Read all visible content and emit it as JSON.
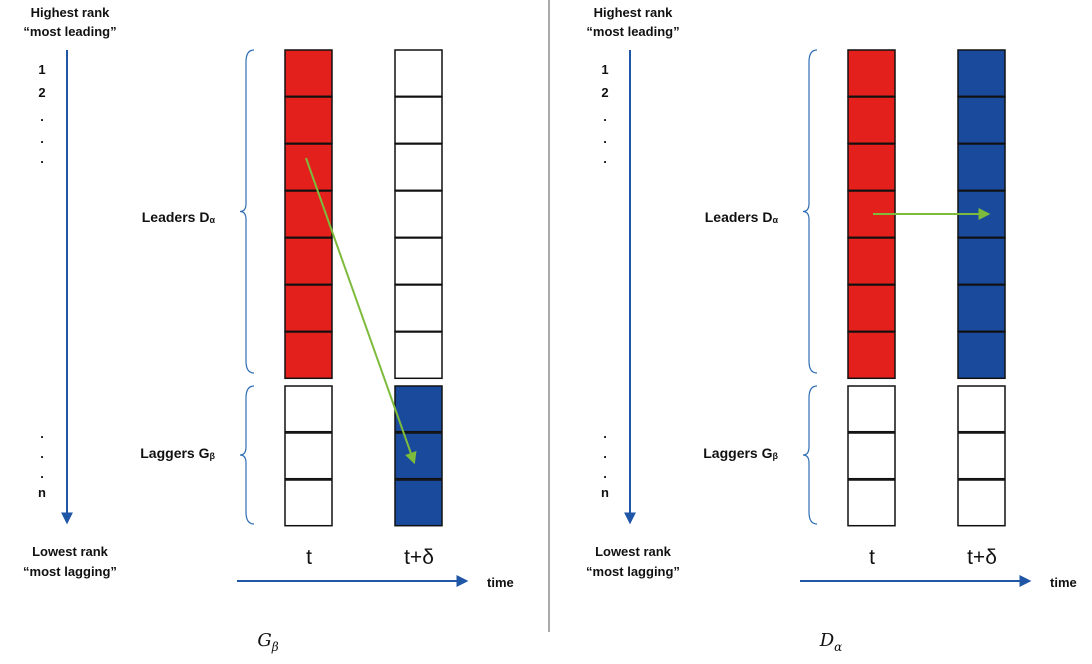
{
  "colors": {
    "red": "#e3201b",
    "blue": "#1a4a9c",
    "white": "#ffffff",
    "green": "#7dbb3c",
    "axis": "#1f56a6",
    "brace": "#2e6db4"
  },
  "panels": [
    {
      "rank_top": {
        "line1": "Highest rank",
        "line2": "“most leading”"
      },
      "rank_bottom": {
        "line1": "Lowest rank",
        "line2": "“most lagging”"
      },
      "ranks_top": [
        "1",
        "2",
        ".",
        ".",
        "."
      ],
      "ranks_bottom": [
        ".",
        ".",
        ".",
        "n"
      ],
      "leaders": {
        "label": "Leaders D",
        "sub": "α"
      },
      "laggers": {
        "label": "Laggers G",
        "sub": "β"
      },
      "col_t": "t",
      "col_td": "t+δ",
      "time_label": "time",
      "caption": {
        "main": "G",
        "sub": "β"
      },
      "t_column": [
        "red",
        "red",
        "red",
        "red",
        "red",
        "red",
        "red",
        "white",
        "white",
        "white"
      ],
      "td_column": [
        "white",
        "white",
        "white",
        "white",
        "white",
        "white",
        "white",
        "blue",
        "blue",
        "blue"
      ],
      "arrow": {
        "from_cell": 2,
        "to_cell": 8
      }
    },
    {
      "rank_top": {
        "line1": "Highest rank",
        "line2": "“most leading”"
      },
      "rank_bottom": {
        "line1": "Lowest rank",
        "line2": "“most lagging”"
      },
      "ranks_top": [
        "1",
        "2",
        ".",
        ".",
        "."
      ],
      "ranks_bottom": [
        ".",
        ".",
        ".",
        "n"
      ],
      "leaders": {
        "label": "Leaders D",
        "sub": "α"
      },
      "laggers": {
        "label": "Laggers G",
        "sub": "β"
      },
      "col_t": "t",
      "col_td": "t+δ",
      "time_label": "time",
      "caption": {
        "main": "D",
        "sub": "α"
      },
      "t_column": [
        "red",
        "red",
        "red",
        "red",
        "red",
        "red",
        "red",
        "white",
        "white",
        "white"
      ],
      "td_column": [
        "blue",
        "blue",
        "blue",
        "blue",
        "blue",
        "blue",
        "blue",
        "white",
        "white",
        "white"
      ],
      "arrow": {
        "from_cell": 3,
        "to_cell": 3
      }
    }
  ]
}
